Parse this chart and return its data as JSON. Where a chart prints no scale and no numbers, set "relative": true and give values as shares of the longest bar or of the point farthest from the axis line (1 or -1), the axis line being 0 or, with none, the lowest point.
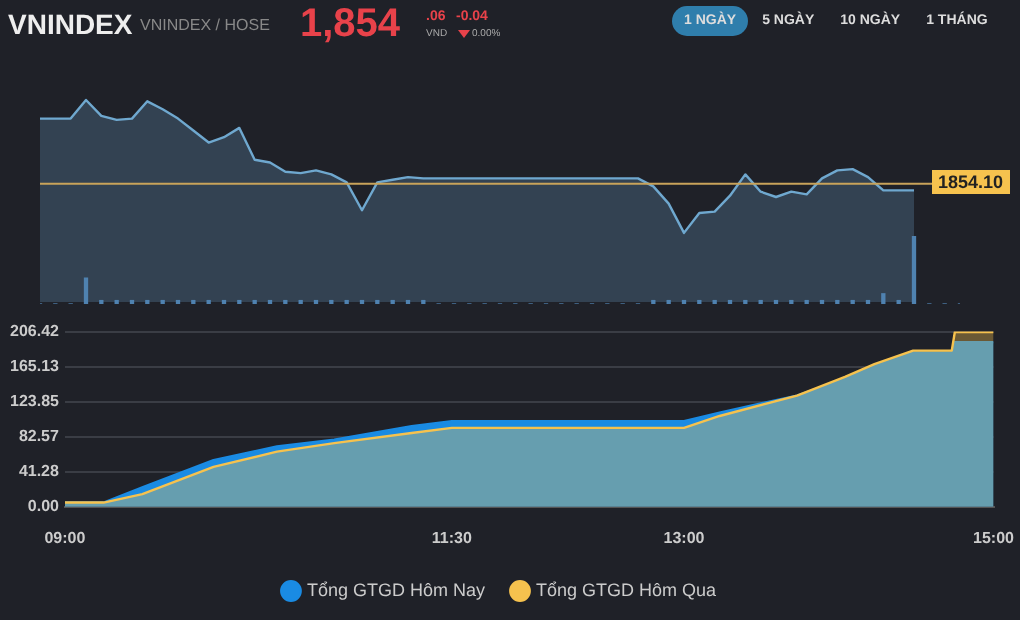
{
  "chart_data": [
    {
      "type": "area",
      "title": "VNINDEX",
      "subtitle": "VNINDEX / HOSE",
      "relative": true,
      "tick_labels": false,
      "grid": false,
      "legend": false,
      "annotations": [
        "1,854",
        ".06",
        "VND",
        "-0.04",
        "0.00%",
        "1 NGÀY",
        "5 NGÀY",
        "10 NGÀY",
        "1 THÁNG",
        "1854.10"
      ],
      "categories": [
        null,
        null,
        null,
        null,
        null,
        null,
        null,
        null,
        null,
        null,
        null,
        null,
        null,
        null,
        null,
        null,
        null,
        null,
        null,
        null,
        null,
        null,
        null,
        null,
        null,
        null,
        null,
        null,
        null,
        null,
        null,
        null,
        null,
        null,
        null,
        null,
        null,
        null,
        null,
        null,
        null,
        null,
        null,
        null,
        null,
        null,
        null,
        null,
        null,
        null,
        null,
        null,
        null,
        null,
        null,
        null,
        null,
        null,
        null,
        null,
        null
      ],
      "series": [
        {
          "color": "#6fa8cf",
          "values": [
            0.86,
            0.86,
            0.86,
            1.0,
            0.88,
            0.85,
            0.86,
            0.99,
            0.93,
            0.86,
            0.77,
            0.68,
            0.72,
            0.79,
            0.55,
            0.53,
            0.46,
            0.45,
            0.47,
            0.44,
            0.38,
            0.17,
            0.38,
            0.4,
            0.42,
            0.41,
            0.41,
            0.41,
            0.41,
            0.41,
            0.41,
            0.41,
            0.41,
            0.41,
            0.41,
            0.41,
            0.41,
            0.41,
            0.41,
            0.41,
            0.35,
            0.22,
            0.0,
            0.15,
            0.16,
            0.28,
            0.44,
            0.31,
            0.27,
            0.31,
            0.29,
            0.41,
            0.47,
            0.48,
            0.42,
            0.32,
            0.32,
            0.32,
            null,
            null,
            null
          ]
        }
      ],
      "ref_lines": [
        {
          "axis": "y",
          "value": 0.37,
          "color": "#c9a35a"
        }
      ]
    },
    {
      "type": "bar",
      "relative": true,
      "tick_labels": false,
      "grid": false,
      "legend": false,
      "categories": [
        null,
        null,
        null,
        null,
        null,
        null,
        null,
        null,
        null,
        null,
        null,
        null,
        null,
        null,
        null,
        null,
        null,
        null,
        null,
        null,
        null,
        null,
        null,
        null,
        null,
        null,
        null,
        null,
        null,
        null,
        null,
        null,
        null,
        null,
        null,
        null,
        null,
        null,
        null,
        null,
        null,
        null,
        null,
        null,
        null,
        null,
        null,
        null,
        null,
        null,
        null,
        null,
        null,
        null,
        null,
        null,
        null,
        null,
        null,
        null,
        null
      ],
      "series": [
        {
          "color": "#4f82b0",
          "values": [
            0,
            0,
            0,
            0.38,
            0.05,
            0.05,
            0.05,
            0.05,
            0.05,
            0.05,
            0.05,
            0.05,
            0.05,
            0.05,
            0.05,
            0.05,
            0.05,
            0.05,
            0.05,
            0.05,
            0.05,
            0.05,
            0.05,
            0.05,
            0.05,
            0.05,
            0,
            0,
            0,
            0,
            0,
            0,
            0,
            0,
            0,
            0,
            0,
            0,
            0,
            0,
            0.05,
            0.05,
            0.05,
            0.05,
            0.05,
            0.05,
            0.05,
            0.05,
            0.05,
            0.05,
            0.05,
            0.05,
            0.05,
            0.05,
            0.05,
            0.15,
            0.05,
            1.0,
            0,
            0,
            0
          ]
        }
      ]
    },
    {
      "type": "area",
      "grid": "y",
      "legend": "bottom",
      "xlim": [
        9,
        15
      ],
      "xticks": [
        {
          "value": 9,
          "label": "09:00"
        },
        {
          "value": 11.5,
          "label": "11:30"
        },
        {
          "value": 13,
          "label": "13:00"
        },
        {
          "value": 15,
          "label": "15:00"
        }
      ],
      "ylim": [
        0,
        206.42
      ],
      "yticks": [
        {
          "value": 0,
          "label": "0.00"
        },
        41.28,
        82.57,
        123.85,
        165.13,
        206.42
      ],
      "series": [
        {
          "name": "Tổng GTGD Hôm Nay",
          "color": "#1a8be3",
          "x": [
            9.0,
            9.25,
            9.5,
            9.96,
            10.37,
            10.74,
            11.24,
            11.5,
            13.0,
            13.23,
            13.73,
            14.04,
            14.23,
            14.48,
            14.73,
            14.75,
            15.0
          ],
          "values": [
            5,
            5,
            23,
            55,
            71,
            79,
            95,
            101,
            101,
            111,
            131,
            151,
            166,
            182,
            182,
            194,
            194
          ]
        },
        {
          "name": "Tổng GTGD Hôm Qua",
          "color": "#f6c24e",
          "x": [
            9.0,
            9.25,
            9.5,
            9.96,
            10.37,
            10.74,
            11.24,
            11.5,
            13.0,
            13.23,
            13.73,
            14.04,
            14.23,
            14.48,
            14.73,
            14.75,
            15.0
          ],
          "values": [
            5,
            5,
            15,
            47,
            65,
            75,
            87,
            93,
            93,
            107,
            131,
            153,
            168,
            184,
            184,
            206,
            206
          ]
        }
      ]
    }
  ]
}
